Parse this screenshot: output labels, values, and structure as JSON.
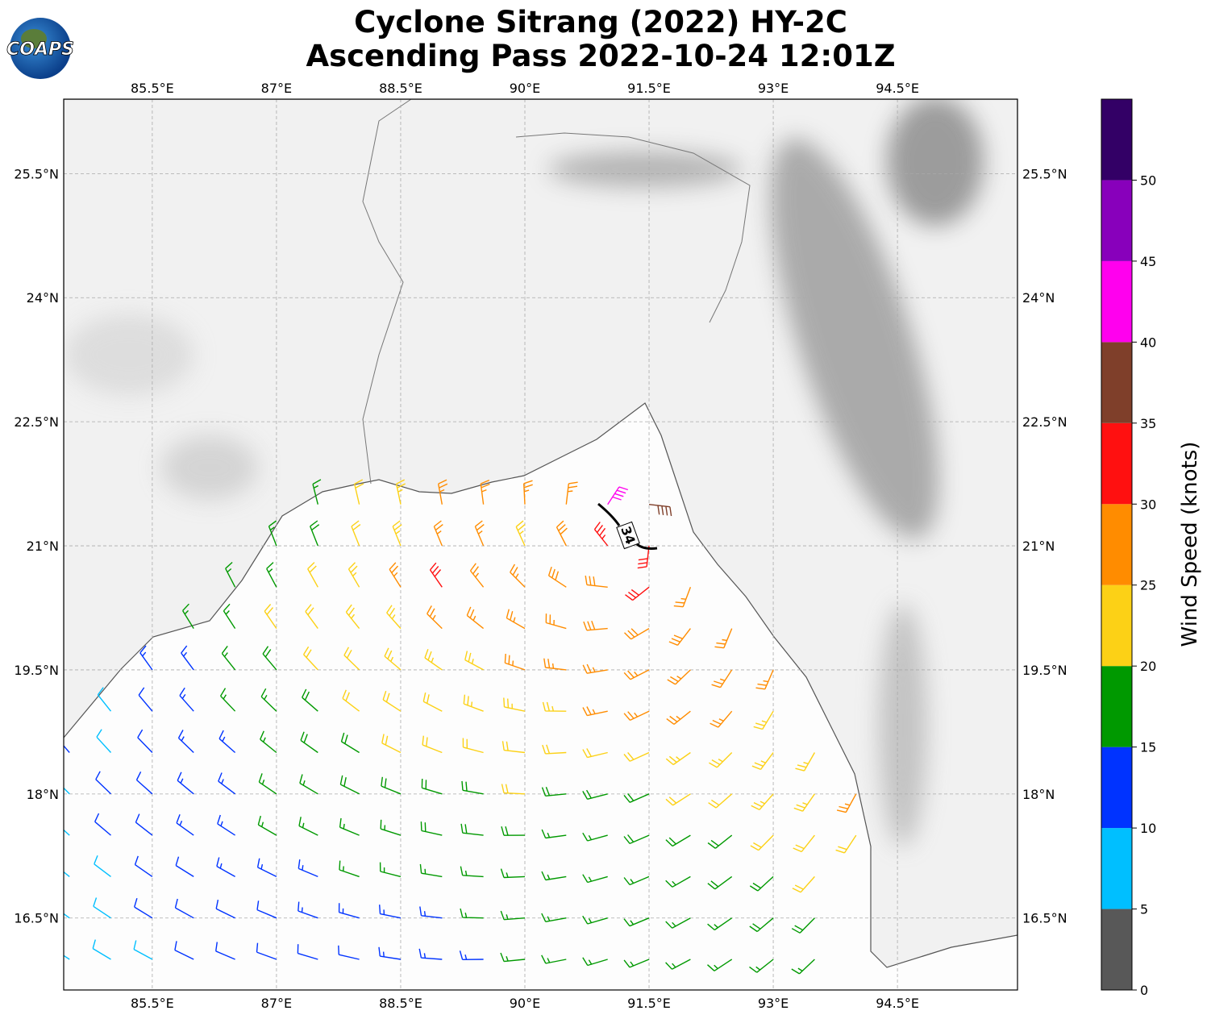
{
  "title": [
    "Cyclone Sitrang (2022) HY-2C",
    "Ascending Pass 2022-10-24 12:01Z"
  ],
  "logo": "COAPS",
  "map": {
    "lonlim": [
      84.43,
      95.95
    ],
    "latlim": [
      15.63,
      26.4
    ],
    "lon_ticks": [
      {
        "value": 85.5,
        "label": "85.5°E"
      },
      {
        "value": 87,
        "label": "87°E"
      },
      {
        "value": 88.5,
        "label": "88.5°E"
      },
      {
        "value": 90,
        "label": "90°E"
      },
      {
        "value": 91.5,
        "label": "91.5°E"
      },
      {
        "value": 93,
        "label": "93°E"
      },
      {
        "value": 94.5,
        "label": "94.5°E"
      }
    ],
    "lat_ticks": [
      {
        "value": 16.5,
        "label": "16.5°N"
      },
      {
        "value": 18,
        "label": "18°N"
      },
      {
        "value": 19.5,
        "label": "19.5°N"
      },
      {
        "value": 21,
        "label": "21°N"
      },
      {
        "value": 22.5,
        "label": "22.5°N"
      },
      {
        "value": 24,
        "label": "24°N"
      },
      {
        "value": 25.5,
        "label": "25.5°N"
      }
    ]
  },
  "colorbar": {
    "label": "Wind Speed (knots)",
    "bounds": [
      0,
      5,
      10,
      15,
      20,
      25,
      30,
      35,
      40,
      45,
      50,
      55
    ],
    "colors": [
      "#585858",
      "#00bfff",
      "#0033ff",
      "#009900",
      "#fcd116",
      "#ff8c00",
      "#ff1010",
      "#7f3f2a",
      "#ff00ee",
      "#8800bb",
      "#330066"
    ],
    "ticks": [
      0,
      5,
      10,
      15,
      20,
      25,
      30,
      35,
      40,
      45,
      50
    ]
  },
  "contour_label": 34,
  "wind": {
    "center": [
      91.3,
      21.1
    ],
    "lats": [
      21.5,
      21,
      20.5,
      20,
      19.5,
      19,
      18.5,
      18,
      17.5,
      17,
      16.5,
      16
    ],
    "lons": [
      84.5,
      85,
      85.5,
      86,
      86.5,
      87,
      87.5,
      88,
      88.5,
      89,
      89.5,
      90,
      90.5,
      91,
      91.5,
      92,
      92.5,
      93,
      93.5,
      94
    ],
    "speeds": [
      [
        null,
        null,
        null,
        null,
        null,
        null,
        16,
        22,
        23,
        26,
        27,
        25,
        27,
        42,
        38,
        null,
        null,
        null,
        null,
        null
      ],
      [
        null,
        null,
        null,
        null,
        null,
        17,
        18,
        22,
        24,
        26,
        27,
        24,
        28,
        33,
        32,
        null,
        null,
        null,
        null,
        null
      ],
      [
        null,
        null,
        null,
        null,
        16,
        17,
        22,
        23,
        25,
        31,
        27,
        26,
        28,
        29,
        31,
        27,
        null,
        null,
        null,
        null
      ],
      [
        null,
        null,
        null,
        16,
        17,
        21,
        22,
        23,
        24,
        26,
        27,
        26,
        27,
        28,
        29,
        28,
        27,
        null,
        null,
        null
      ],
      [
        null,
        null,
        13,
        14,
        17,
        19,
        21,
        22,
        23,
        23,
        24,
        25,
        26,
        27,
        27,
        27,
        27,
        26,
        null,
        null
      ],
      [
        null,
        8,
        12,
        13,
        16,
        17,
        19,
        21,
        22,
        22,
        23,
        23,
        24,
        26,
        26,
        26,
        25,
        24,
        null,
        null
      ],
      [
        11,
        9,
        12,
        13,
        14,
        17,
        18,
        19,
        21,
        21,
        22,
        22,
        22,
        21,
        22,
        23,
        23,
        24,
        24,
        null
      ],
      [
        8,
        11,
        12,
        13,
        14,
        16,
        17,
        18,
        18,
        19,
        19,
        20,
        19,
        19,
        19,
        20,
        22,
        23,
        24,
        27
      ],
      [
        9,
        12,
        12,
        13,
        13,
        15,
        16,
        17,
        17,
        18,
        18,
        18,
        17,
        17,
        18,
        18,
        19,
        21,
        22,
        22
      ],
      [
        8,
        9,
        12,
        12,
        13,
        13,
        14,
        16,
        16,
        16,
        17,
        17,
        16,
        16,
        17,
        17,
        18,
        19,
        21,
        null
      ],
      [
        8,
        9,
        11,
        12,
        12,
        12,
        13,
        13,
        14,
        14,
        15,
        16,
        16,
        16,
        16,
        17,
        17,
        18,
        18,
        null
      ],
      [
        8,
        9,
        9,
        11,
        12,
        12,
        12,
        12,
        13,
        13,
        14,
        15,
        16,
        16,
        16,
        16,
        16,
        17,
        17,
        null
      ]
    ]
  }
}
